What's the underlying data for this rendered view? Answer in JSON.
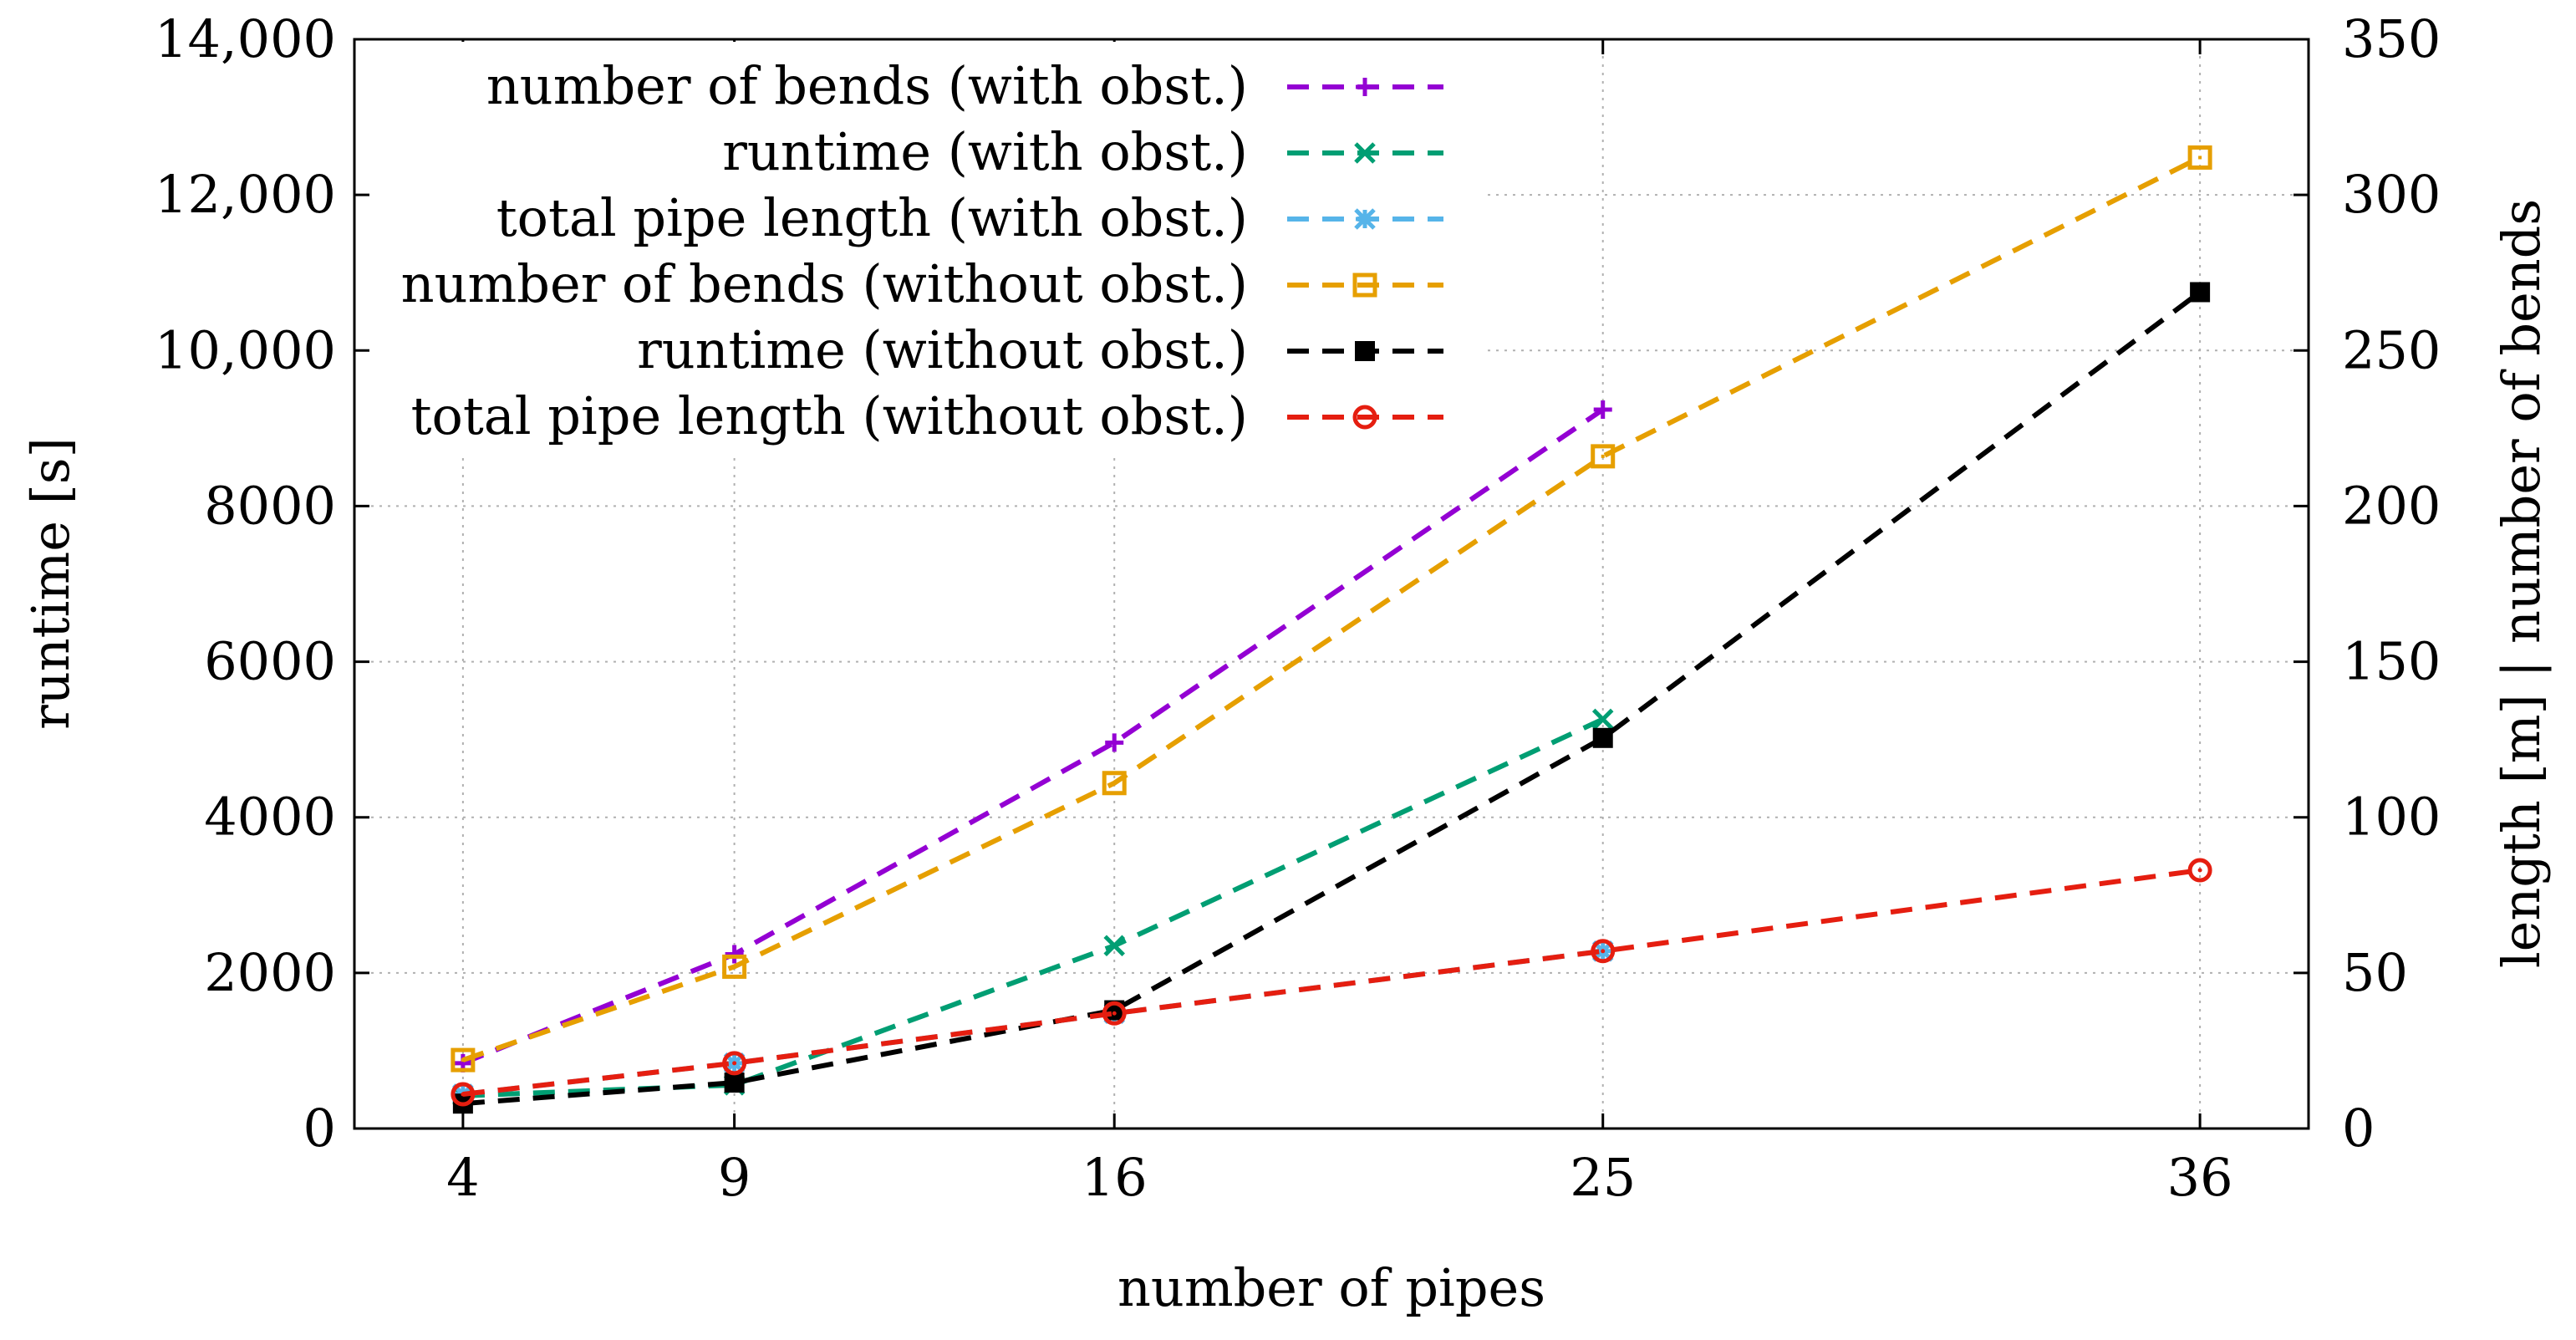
{
  "chart_data": {
    "type": "line",
    "xlabel": "number of pipes",
    "ylabel": "runtime [s]",
    "y2label": "length [m] | number of bends",
    "x": [
      4,
      9,
      16,
      25,
      36
    ],
    "xticks": [
      "4",
      "9",
      "16",
      "25",
      "36"
    ],
    "xlim": [
      2,
      38
    ],
    "ylim": [
      0,
      14000
    ],
    "yticks": [
      0,
      2000,
      4000,
      6000,
      8000,
      10000,
      12000,
      14000
    ],
    "ytick_labels": [
      "0",
      "2000",
      "4000",
      "6000",
      "8000",
      "10,000",
      "12,000",
      "14,000"
    ],
    "y2lim": [
      0,
      350
    ],
    "y2ticks": [
      0,
      50,
      100,
      150,
      200,
      250,
      300,
      350
    ],
    "y2tick_labels": [
      "0",
      "50",
      "100",
      "150",
      "200",
      "250",
      "300",
      "350"
    ],
    "grid": true,
    "legend_position": "top-left",
    "series": [
      {
        "name": "number of bends (with obst.)",
        "axis": "y2",
        "color": "#9400d3",
        "marker": "plus",
        "x": [
          4,
          9,
          16,
          25
        ],
        "values": [
          21,
          56,
          124,
          231
        ]
      },
      {
        "name": "runtime (with obst.)",
        "axis": "y",
        "color": "#009e73",
        "marker": "cross",
        "x": [
          4,
          9,
          16,
          25
        ],
        "values": [
          420,
          560,
          2350,
          5260
        ]
      },
      {
        "name": "total pipe length (with obst.)",
        "axis": "y2",
        "color": "#56b4e9",
        "marker": "star",
        "x": [
          4,
          9,
          16,
          25
        ],
        "values": [
          11,
          21,
          37,
          57
        ]
      },
      {
        "name": "number of bends (without obst.)",
        "axis": "y2",
        "color": "#e69f00",
        "marker": "open-square",
        "x": [
          4,
          9,
          16,
          25,
          36
        ],
        "values": [
          22,
          52,
          111,
          216,
          312
        ]
      },
      {
        "name": "runtime (without obst.)",
        "axis": "y",
        "color": "#000000",
        "marker": "filled-square",
        "x": [
          4,
          9,
          16,
          25,
          36
        ],
        "values": [
          320,
          590,
          1520,
          5020,
          10750
        ]
      },
      {
        "name": "total pipe length (without obst.)",
        "axis": "y2",
        "color": "#e51e10",
        "marker": "open-circle",
        "x": [
          4,
          9,
          16,
          25,
          36
        ],
        "values": [
          11,
          21,
          37,
          57,
          83
        ]
      }
    ]
  }
}
